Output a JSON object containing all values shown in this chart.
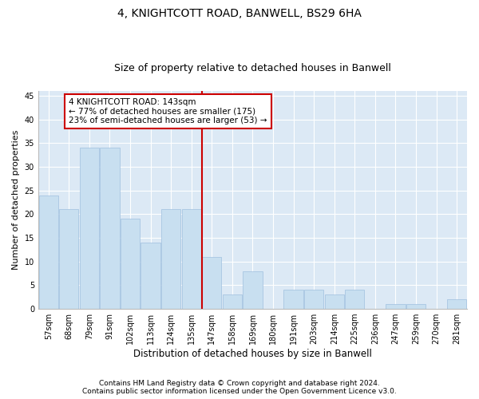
{
  "title1": "4, KNIGHTCOTT ROAD, BANWELL, BS29 6HA",
  "title2": "Size of property relative to detached houses in Banwell",
  "xlabel": "Distribution of detached houses by size in Banwell",
  "ylabel": "Number of detached properties",
  "categories": [
    "57sqm",
    "68sqm",
    "79sqm",
    "91sqm",
    "102sqm",
    "113sqm",
    "124sqm",
    "135sqm",
    "147sqm",
    "158sqm",
    "169sqm",
    "180sqm",
    "191sqm",
    "203sqm",
    "214sqm",
    "225sqm",
    "236sqm",
    "247sqm",
    "259sqm",
    "270sqm",
    "281sqm"
  ],
  "values": [
    24,
    21,
    34,
    34,
    19,
    14,
    21,
    21,
    11,
    3,
    8,
    0,
    4,
    4,
    3,
    4,
    0,
    1,
    1,
    0,
    2
  ],
  "bar_color": "#c8dff0",
  "bar_edgecolor": "#a0c0de",
  "vline_color": "#cc0000",
  "annotation_text": "4 KNIGHTCOTT ROAD: 143sqm\n← 77% of detached houses are smaller (175)\n23% of semi-detached houses are larger (53) →",
  "annotation_box_color": "#ffffff",
  "annotation_box_edgecolor": "#cc0000",
  "ylim": [
    0,
    46
  ],
  "yticks": [
    0,
    5,
    10,
    15,
    20,
    25,
    30,
    35,
    40,
    45
  ],
  "background_color": "#dce9f5",
  "footer1": "Contains HM Land Registry data © Crown copyright and database right 2024.",
  "footer2": "Contains public sector information licensed under the Open Government Licence v3.0.",
  "title1_fontsize": 10,
  "title2_fontsize": 9,
  "xlabel_fontsize": 8.5,
  "ylabel_fontsize": 8,
  "tick_fontsize": 7,
  "annotation_fontsize": 7.5,
  "footer_fontsize": 6.5
}
